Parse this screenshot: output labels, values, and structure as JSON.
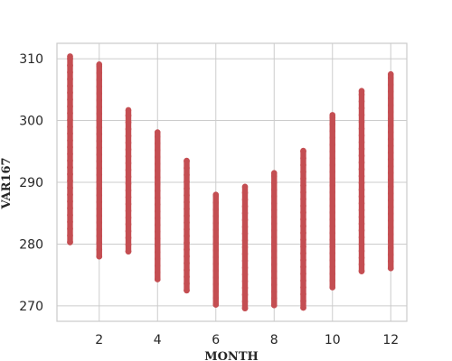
{
  "chart_data": {
    "type": "scatter",
    "title": "",
    "xlabel": "MONTH",
    "ylabel": "VAR167",
    "xlim": [
      0.55,
      12.55
    ],
    "ylim": [
      267.5,
      312.5
    ],
    "x_ticks": [
      2,
      4,
      6,
      8,
      10,
      12
    ],
    "y_ticks": [
      270,
      280,
      290,
      300,
      310
    ],
    "x_tick_labels": [
      "2",
      "4",
      "6",
      "8",
      "10",
      "12"
    ],
    "y_tick_labels": [
      "270",
      "280",
      "290",
      "300",
      "310"
    ],
    "grid": true,
    "legend": "none",
    "marker_color": "#c44e52",
    "series": [
      {
        "points": [
          {
            "x": 1,
            "y_min": 280.3,
            "y_max": 310.4
          },
          {
            "x": 2,
            "y_min": 278.0,
            "y_max": 309.1
          },
          {
            "x": 3,
            "y_min": 278.8,
            "y_max": 301.7
          },
          {
            "x": 4,
            "y_min": 274.3,
            "y_max": 298.1
          },
          {
            "x": 5,
            "y_min": 272.5,
            "y_max": 293.5
          },
          {
            "x": 6,
            "y_min": 270.2,
            "y_max": 288.0
          },
          {
            "x": 7,
            "y_min": 269.6,
            "y_max": 289.3
          },
          {
            "x": 8,
            "y_min": 270.1,
            "y_max": 291.5
          },
          {
            "x": 9,
            "y_min": 269.7,
            "y_max": 295.1
          },
          {
            "x": 10,
            "y_min": 273.0,
            "y_max": 300.9
          },
          {
            "x": 11,
            "y_min": 275.6,
            "y_max": 304.8
          },
          {
            "x": 12,
            "y_min": 276.1,
            "y_max": 307.5
          }
        ]
      }
    ]
  }
}
